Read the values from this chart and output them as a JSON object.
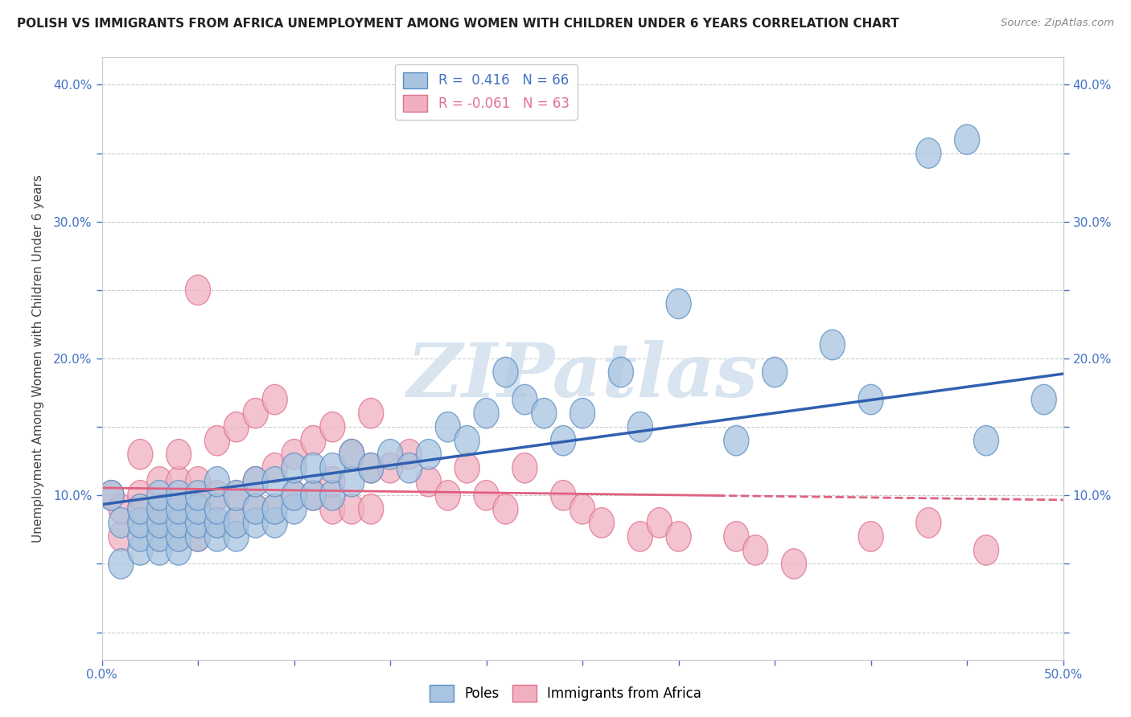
{
  "title": "POLISH VS IMMIGRANTS FROM AFRICA UNEMPLOYMENT AMONG WOMEN WITH CHILDREN UNDER 6 YEARS CORRELATION CHART",
  "source": "Source: ZipAtlas.com",
  "ylabel": "Unemployment Among Women with Children Under 6 years",
  "xlim": [
    0.0,
    0.5
  ],
  "ylim": [
    -0.02,
    0.42
  ],
  "blue_R": 0.416,
  "blue_N": 66,
  "pink_R": -0.061,
  "pink_N": 63,
  "blue_fill": "#a8c4e0",
  "blue_edge": "#5b8ec4",
  "pink_fill": "#f0b0c0",
  "pink_edge": "#e07090",
  "blue_line_color": "#3060b0",
  "pink_line_color": "#e06080",
  "watermark_text": "ZIPatlas",
  "watermark_color": "#d8e4f0",
  "legend_label_blue": "Poles",
  "legend_label_pink": "Immigrants from Africa",
  "blue_scatter_x": [
    0.005,
    0.01,
    0.01,
    0.02,
    0.02,
    0.02,
    0.02,
    0.03,
    0.03,
    0.03,
    0.03,
    0.03,
    0.04,
    0.04,
    0.04,
    0.04,
    0.04,
    0.05,
    0.05,
    0.05,
    0.05,
    0.06,
    0.06,
    0.06,
    0.06,
    0.07,
    0.07,
    0.07,
    0.08,
    0.08,
    0.08,
    0.09,
    0.09,
    0.09,
    0.1,
    0.1,
    0.1,
    0.11,
    0.11,
    0.12,
    0.12,
    0.13,
    0.13,
    0.14,
    0.15,
    0.16,
    0.17,
    0.18,
    0.19,
    0.2,
    0.21,
    0.22,
    0.23,
    0.24,
    0.25,
    0.27,
    0.28,
    0.3,
    0.33,
    0.35,
    0.38,
    0.4,
    0.43,
    0.45,
    0.46,
    0.49
  ],
  "blue_scatter_y": [
    0.1,
    0.05,
    0.08,
    0.06,
    0.07,
    0.08,
    0.09,
    0.06,
    0.07,
    0.08,
    0.09,
    0.1,
    0.06,
    0.07,
    0.08,
    0.09,
    0.1,
    0.07,
    0.08,
    0.09,
    0.1,
    0.07,
    0.08,
    0.09,
    0.11,
    0.07,
    0.08,
    0.1,
    0.08,
    0.09,
    0.11,
    0.08,
    0.09,
    0.11,
    0.09,
    0.1,
    0.12,
    0.1,
    0.12,
    0.1,
    0.12,
    0.11,
    0.13,
    0.12,
    0.13,
    0.12,
    0.13,
    0.15,
    0.14,
    0.16,
    0.19,
    0.17,
    0.16,
    0.14,
    0.16,
    0.19,
    0.15,
    0.24,
    0.14,
    0.19,
    0.21,
    0.17,
    0.35,
    0.36,
    0.14,
    0.17
  ],
  "pink_scatter_x": [
    0.005,
    0.01,
    0.01,
    0.02,
    0.02,
    0.02,
    0.02,
    0.03,
    0.03,
    0.03,
    0.03,
    0.04,
    0.04,
    0.04,
    0.04,
    0.05,
    0.05,
    0.05,
    0.05,
    0.06,
    0.06,
    0.06,
    0.07,
    0.07,
    0.07,
    0.08,
    0.08,
    0.08,
    0.09,
    0.09,
    0.09,
    0.1,
    0.1,
    0.11,
    0.11,
    0.12,
    0.12,
    0.12,
    0.13,
    0.13,
    0.14,
    0.14,
    0.14,
    0.15,
    0.16,
    0.17,
    0.18,
    0.19,
    0.2,
    0.21,
    0.22,
    0.24,
    0.25,
    0.26,
    0.28,
    0.29,
    0.3,
    0.33,
    0.34,
    0.36,
    0.4,
    0.43,
    0.46
  ],
  "pink_scatter_y": [
    0.1,
    0.07,
    0.09,
    0.08,
    0.09,
    0.1,
    0.13,
    0.07,
    0.08,
    0.09,
    0.11,
    0.07,
    0.09,
    0.11,
    0.13,
    0.07,
    0.09,
    0.11,
    0.25,
    0.08,
    0.1,
    0.14,
    0.08,
    0.1,
    0.15,
    0.09,
    0.11,
    0.16,
    0.09,
    0.12,
    0.17,
    0.1,
    0.13,
    0.1,
    0.14,
    0.09,
    0.11,
    0.15,
    0.09,
    0.13,
    0.09,
    0.12,
    0.16,
    0.12,
    0.13,
    0.11,
    0.1,
    0.12,
    0.1,
    0.09,
    0.12,
    0.1,
    0.09,
    0.08,
    0.07,
    0.08,
    0.07,
    0.07,
    0.06,
    0.05,
    0.07,
    0.08,
    0.06
  ]
}
